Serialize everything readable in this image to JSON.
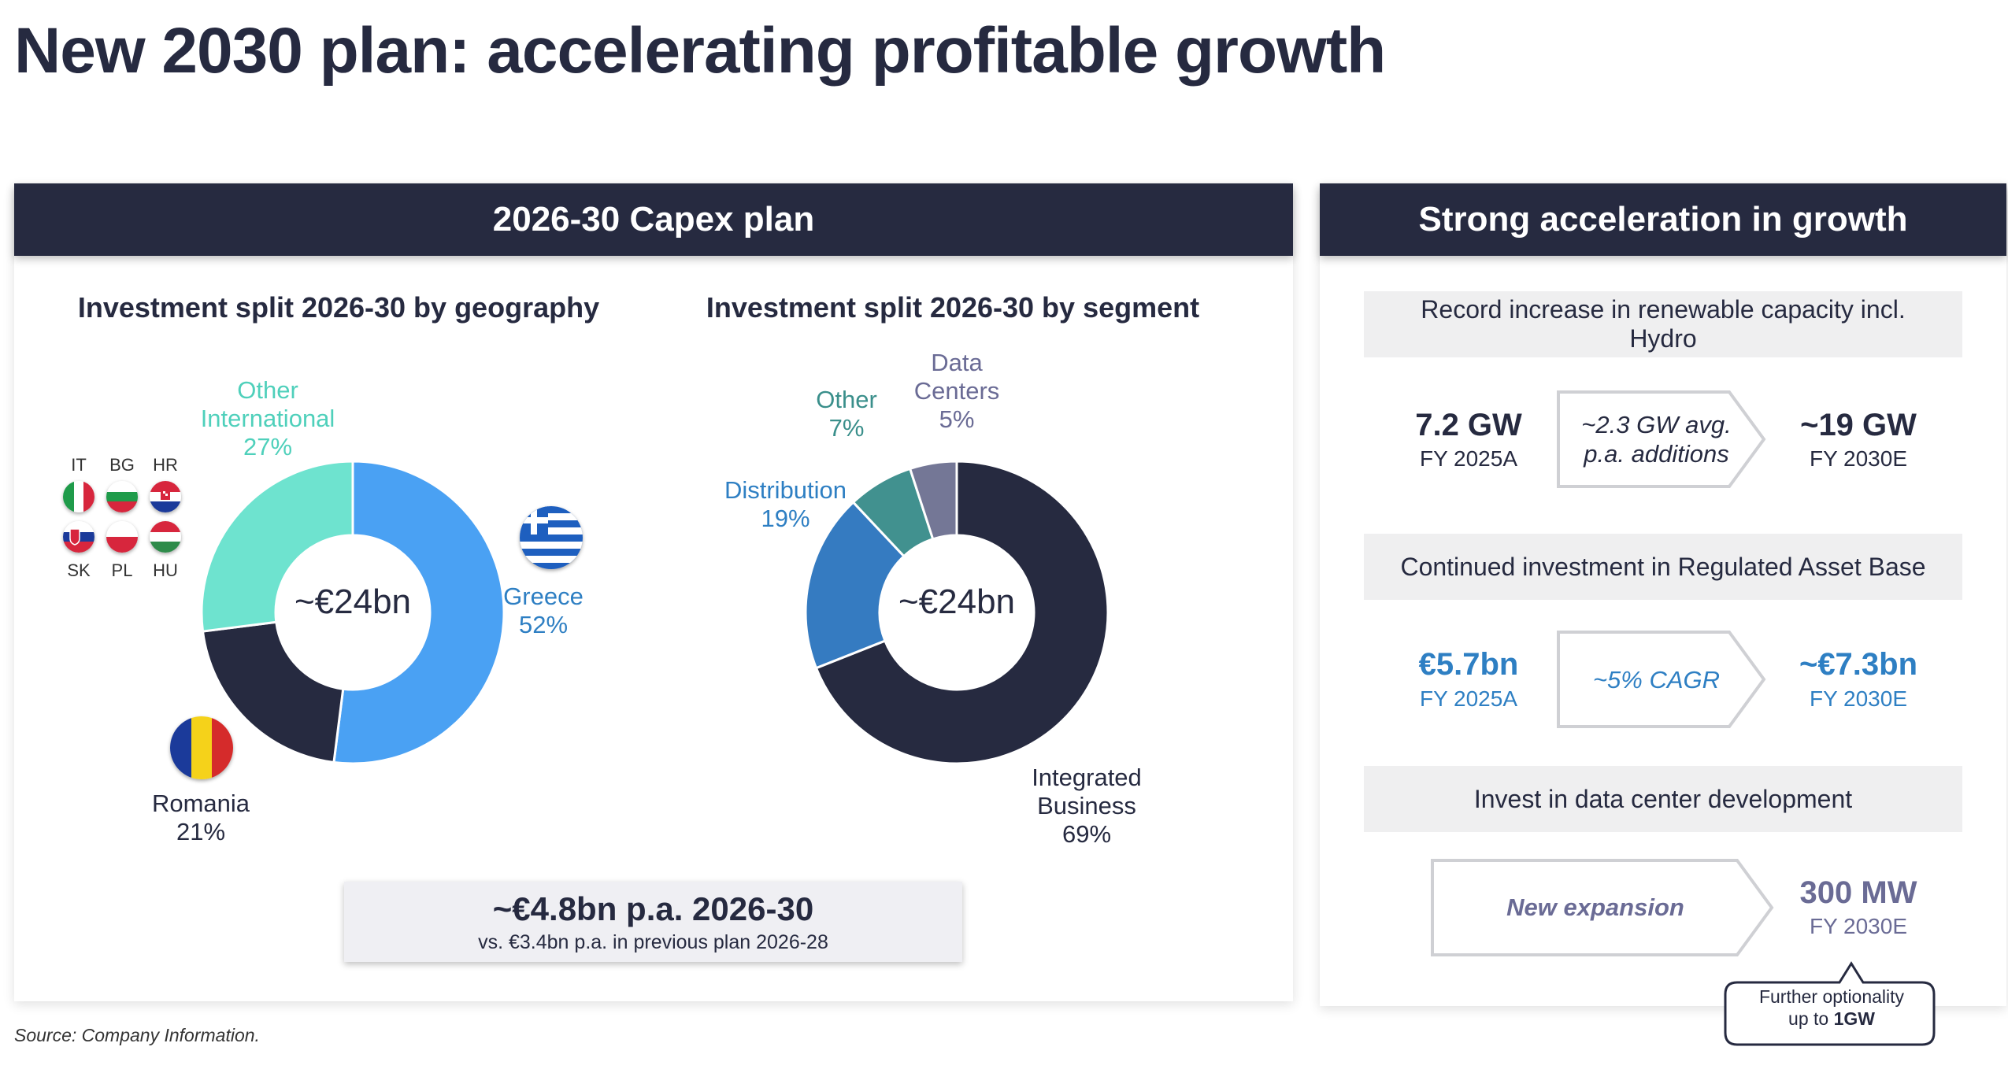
{
  "title": "New 2030 plan: accelerating profitable growth",
  "left_header": "2026-30 Capex plan",
  "right_header": "Strong acceleration in growth",
  "geo_chart_title": "Investment split 2026-30 by geography",
  "seg_chart_title": "Investment split 2026-30 by segment",
  "chart_data": [
    {
      "type": "pie",
      "title": "Investment split 2026-30 by geography",
      "center_label": "~€24bn",
      "slices": [
        {
          "label": "Greece",
          "value": 52,
          "value_label": "52%",
          "color": "#4aa1f3"
        },
        {
          "label": "Romania",
          "value": 21,
          "value_label": "21%",
          "color": "#262a40"
        },
        {
          "label_lines": [
            "Other",
            "International"
          ],
          "value": 27,
          "value_label": "27%",
          "color": "#6ee3cf"
        }
      ]
    },
    {
      "type": "pie",
      "title": "Investment split 2026-30 by segment",
      "center_label": "~€24bn",
      "slices": [
        {
          "label_lines": [
            "Integrated",
            "Business"
          ],
          "value": 69,
          "value_label": "69%",
          "color": "#262a40"
        },
        {
          "label": "Distribution",
          "value": 19,
          "value_label": "19%",
          "color": "#357bc1"
        },
        {
          "label": "Other",
          "value": 7,
          "value_label": "7%",
          "color": "#41918f"
        },
        {
          "label_lines": [
            "Data",
            "Centers"
          ],
          "value": 5,
          "value_label": "5%",
          "color": "#747796"
        }
      ]
    }
  ],
  "country_codes": [
    "IT",
    "BG",
    "HR",
    "SK",
    "PL",
    "HU"
  ],
  "summary": {
    "main": "~€4.8bn p.a. 2026-30",
    "sub": "vs. €3.4bn p.a. in previous plan 2026-28"
  },
  "growth": {
    "renewables": {
      "heading": "Record increase in renewable capacity incl. Hydro",
      "from_value": "7.2 GW",
      "from_label": "FY 2025A",
      "arrow_lines": [
        "~2.3 GW avg.",
        "p.a. additions"
      ],
      "to_value": "~19 GW",
      "to_label": "FY 2030E"
    },
    "rab": {
      "heading": "Continued investment in Regulated Asset Base",
      "from_value": "€5.7bn",
      "from_label": "FY 2025A",
      "arrow_text": "~5% CAGR",
      "to_value": "~€7.3bn",
      "to_label": "FY 2030E"
    },
    "datacenter": {
      "heading": "Invest in data center development",
      "arrow_text": "New expansion",
      "to_value": "300 MW",
      "to_label": "FY 2030E",
      "callout_line1": "Further optionality",
      "callout_line2_prefix": "up to ",
      "callout_line2_bold": "1GW"
    }
  },
  "source": "Source: Company Information.",
  "colors": {
    "navy": "#262a40",
    "blue_text": "#2e7fc3",
    "purple_text": "#6a6b95",
    "teal_text": "#45c5b0",
    "grey_box": "#efeff0"
  }
}
